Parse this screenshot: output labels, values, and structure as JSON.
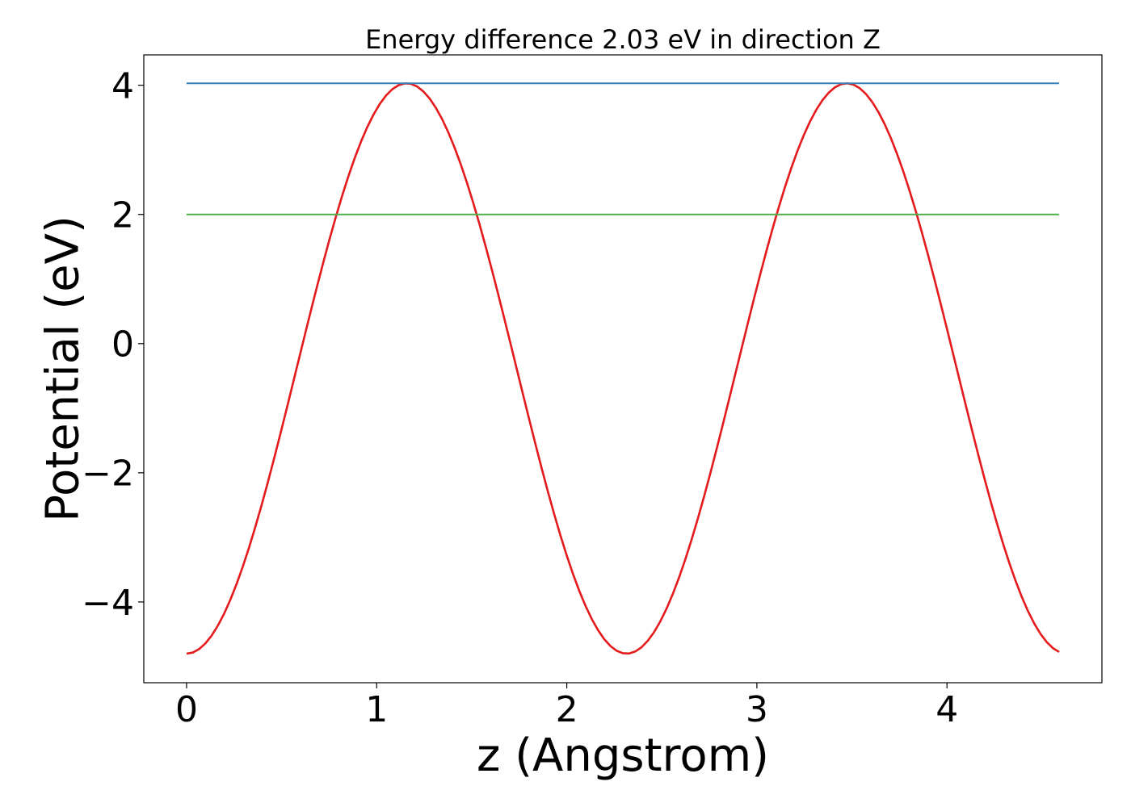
{
  "chart_data": {
    "type": "line",
    "title": "Energy difference 2.03 eV in direction Z",
    "xlabel": "z (Angstrom)",
    "ylabel": "Potential (eV)",
    "xlim": [
      -0.225,
      4.815
    ],
    "ylim": [
      -5.25,
      4.47
    ],
    "xticks": [
      0,
      1,
      2,
      3,
      4
    ],
    "xtick_labels": [
      "0",
      "1",
      "2",
      "3",
      "4"
    ],
    "yticks": [
      -4,
      -2,
      0,
      2,
      4
    ],
    "ytick_labels": [
      "−4",
      "−2",
      "0",
      "2",
      "4"
    ],
    "grid": false,
    "legend": "none",
    "series": [
      {
        "role": "potential",
        "color": "#e41a1c",
        "function": "cosine",
        "x_range": [
          0,
          4.59
        ],
        "min": -4.8,
        "max": 4.03,
        "period": 2.315,
        "minimum_at": 0
      },
      {
        "role": "maximum",
        "color": "#377eb8",
        "x": [
          0,
          4.59
        ],
        "y": [
          4.03,
          4.03
        ]
      },
      {
        "role": "reference",
        "color": "#4daf4a",
        "x": [
          0,
          4.59
        ],
        "y": [
          2.0,
          2.0
        ]
      }
    ]
  }
}
